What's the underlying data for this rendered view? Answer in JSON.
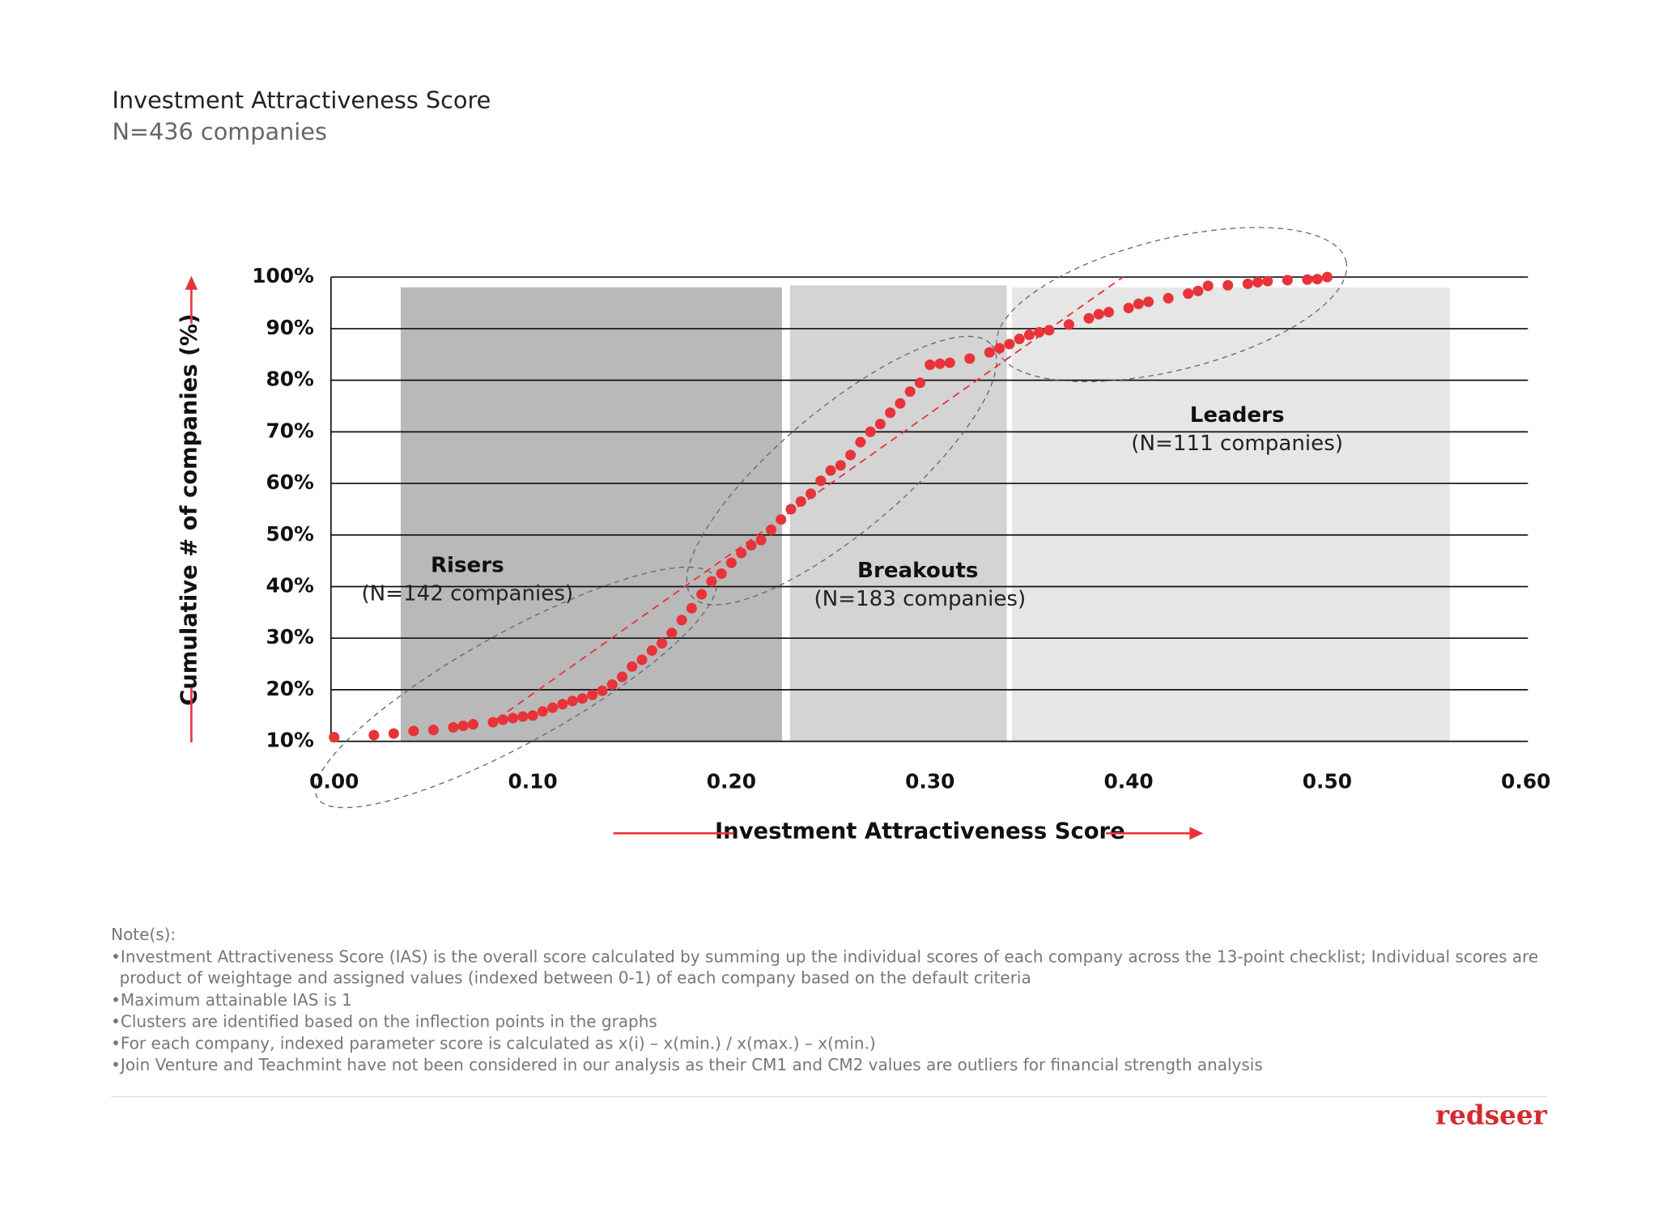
{
  "chart_data": {
    "type": "scatter",
    "title": "Investment Attractiveness Score",
    "subtitle": "N=436 companies",
    "x_label": "Investment Attractiveness Score",
    "y_label": "Cumulative # of companies (%)",
    "xlim": [
      0,
      0.6
    ],
    "ylim": [
      10,
      100
    ],
    "xticks": [
      {
        "value": 0,
        "label": "0.00"
      },
      {
        "value": 0.1,
        "label": "0.10"
      },
      {
        "value": 0.2,
        "label": "0.20"
      },
      {
        "value": 0.3,
        "label": "0.30"
      },
      {
        "value": 0.4,
        "label": "0.40"
      },
      {
        "value": 0.5,
        "label": "0.50"
      },
      {
        "value": 0.6,
        "label": "0.60"
      }
    ],
    "yticks": [
      {
        "value": 10,
        "label": "10%"
      },
      {
        "value": 20,
        "label": "20%"
      },
      {
        "value": 30,
        "label": "30%"
      },
      {
        "value": 40,
        "label": "40%"
      },
      {
        "value": 50,
        "label": "50%"
      },
      {
        "value": 60,
        "label": "60%"
      },
      {
        "value": 70,
        "label": "70%"
      },
      {
        "value": 80,
        "label": "80%"
      },
      {
        "value": 90,
        "label": "90%"
      },
      {
        "value": 100,
        "label": "100%"
      }
    ],
    "grid": true,
    "clusters": [
      {
        "name": "Risers",
        "label": "(N=142 companies)",
        "x": [
          0.0335,
          0.2255
        ],
        "top": 98,
        "color": "#b9b9b9"
      },
      {
        "name": "Breakouts",
        "label": "(N=183 companies)",
        "x": [
          0.2295,
          0.3387
        ],
        "top": 98.4,
        "color": "#d4d4d4"
      },
      {
        "name": "Leaders",
        "label": "(N=111 companies)",
        "x": [
          0.3413,
          0.5618
        ],
        "top": 98,
        "color": "#e6e6e6"
      }
    ],
    "series": [
      {
        "color": "#e8333a",
        "x": [
          0.0,
          0.02,
          0.03,
          0.04,
          0.05,
          0.06,
          0.065,
          0.07,
          0.08,
          0.085,
          0.09,
          0.095,
          0.1,
          0.105,
          0.11,
          0.115,
          0.12,
          0.125,
          0.13,
          0.135,
          0.14,
          0.145,
          0.15,
          0.155,
          0.16,
          0.165,
          0.17,
          0.175,
          0.18,
          0.185,
          0.19,
          0.195,
          0.2,
          0.205,
          0.21,
          0.215,
          0.22,
          0.225,
          0.23,
          0.235,
          0.24,
          0.245,
          0.25,
          0.255,
          0.26,
          0.265,
          0.27,
          0.275,
          0.28,
          0.285,
          0.29,
          0.295,
          0.3,
          0.305,
          0.31,
          0.32,
          0.33,
          0.335,
          0.34,
          0.345,
          0.35,
          0.355,
          0.36,
          0.37,
          0.38,
          0.385,
          0.39,
          0.4,
          0.405,
          0.41,
          0.42,
          0.43,
          0.435,
          0.44,
          0.45,
          0.46,
          0.465,
          0.47,
          0.48,
          0.49,
          0.495,
          0.5
        ],
        "values": [
          10.8,
          11.2,
          11.5,
          12.0,
          12.2,
          12.7,
          13.0,
          13.3,
          13.7,
          14.2,
          14.5,
          14.8,
          15.0,
          15.8,
          16.5,
          17.2,
          17.8,
          18.3,
          19.0,
          19.8,
          21.0,
          22.5,
          24.5,
          25.8,
          27.6,
          29.0,
          31.0,
          33.5,
          35.8,
          38.5,
          41.0,
          42.5,
          44.6,
          46.5,
          48.0,
          49.0,
          51.0,
          53.0,
          55.0,
          56.5,
          58.0,
          60.5,
          62.5,
          63.5,
          65.5,
          68.0,
          70.0,
          71.5,
          73.7,
          75.5,
          77.8,
          79.5,
          83.0,
          83.2,
          83.4,
          84.2,
          85.4,
          86.2,
          87.0,
          88.0,
          88.8,
          89.3,
          89.7,
          90.8,
          92.0,
          92.8,
          93.2,
          94.0,
          94.8,
          95.2,
          95.9,
          96.8,
          97.3,
          98.3,
          98.4,
          98.7,
          99.0,
          99.2,
          99.4,
          99.5,
          99.6,
          100
        ]
      }
    ],
    "notes": {
      "heading": "Note(s):",
      "items": [
        "•Investment Attractiveness Score (IAS) is the overall score calculated by summing up the individual scores of each company across the 13-point checklist; Individual scores are product of weightage and assigned values (indexed between 0-1) of each company based on the default criteria",
        "•Maximum attainable IAS is 1",
        "•Clusters are identified based on the inflection points in the graphs",
        "•For each company, indexed parameter score is calculated as x(i) – x(min.) / x(max.) – x(min.)",
        "•Join Venture and Teachmint have not been considered in our analysis as their CM1 and CM2 values are outliers for financial strength analysis"
      ]
    },
    "brand": "redseer"
  }
}
